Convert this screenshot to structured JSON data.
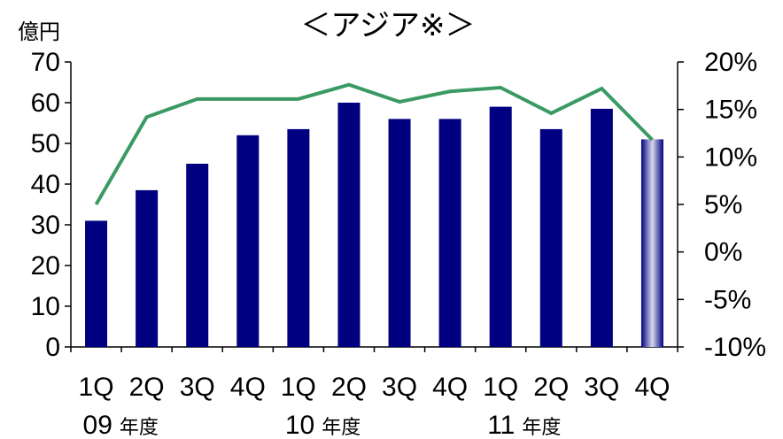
{
  "chart_data": {
    "type": "bar",
    "title": "＜アジア※＞",
    "ylabel_left": "億円",
    "ylim_left": [
      0,
      70
    ],
    "yticks_left": [
      "0",
      "10",
      "20",
      "30",
      "40",
      "50",
      "60",
      "70"
    ],
    "ylim_right": [
      -10,
      20
    ],
    "yticks_right": [
      "-10%",
      "-5%",
      "0%",
      "5%",
      "10%",
      "15%",
      "20%"
    ],
    "categories": [
      "1Q",
      "2Q",
      "3Q",
      "4Q",
      "1Q",
      "2Q",
      "3Q",
      "4Q",
      "1Q",
      "2Q",
      "3Q",
      "4Q"
    ],
    "year_groups": [
      {
        "year": "09",
        "suffix": "年度",
        "start_index": 0
      },
      {
        "year": "10",
        "suffix": "年度",
        "start_index": 4
      },
      {
        "year": "11",
        "suffix": "年度",
        "start_index": 8
      }
    ],
    "series": [
      {
        "type": "bar",
        "axis": "left",
        "values": [
          31,
          38.5,
          45,
          52,
          53.5,
          60,
          56,
          56,
          59,
          53.5,
          58.5,
          51
        ],
        "color": "#000080",
        "highlight_last": true
      },
      {
        "type": "line",
        "axis": "right",
        "values": [
          5,
          14.2,
          16.1,
          16.1,
          16.1,
          17.6,
          15.8,
          16.9,
          17.3,
          14.6,
          17.2,
          11.8
        ],
        "color": "#3a9a64"
      }
    ],
    "grid": false
  }
}
